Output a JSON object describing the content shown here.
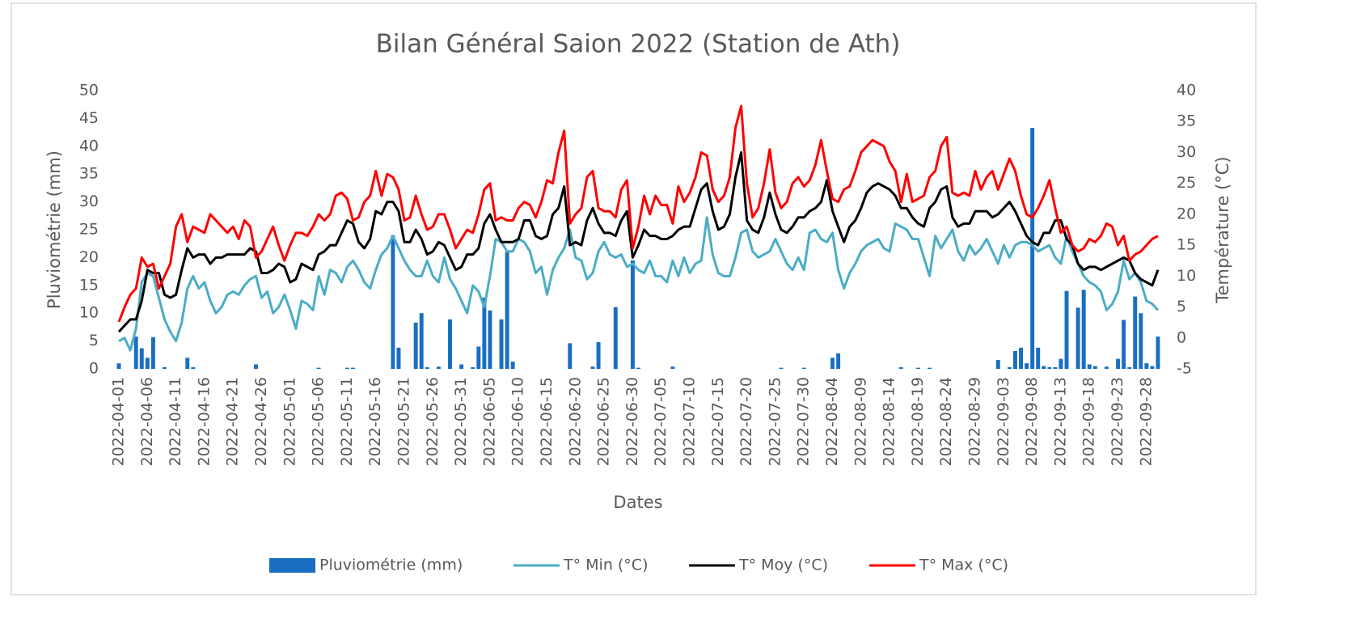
{
  "chart_data": {
    "type": "bar-line",
    "title": "Bilan Général Saion 2022 (Station de Ath)",
    "x_label": "Dates",
    "y_label": "Pluviométrie (mm)",
    "y2_label": "Température (°C)",
    "ylim": [
      0,
      50
    ],
    "yticks": [
      0,
      5,
      10,
      15,
      20,
      25,
      30,
      35,
      40,
      45,
      50
    ],
    "y2lim": [
      -5,
      40
    ],
    "y2ticks": [
      -5,
      0,
      5,
      10,
      15,
      20,
      25,
      30,
      35,
      40
    ],
    "legend": "bottom",
    "categories": [
      "2022-04-01",
      null,
      null,
      null,
      null,
      "2022-04-06",
      null,
      null,
      null,
      null,
      "2022-04-11",
      null,
      null,
      null,
      null,
      "2022-04-16",
      null,
      null,
      null,
      null,
      "2022-04-21",
      null,
      null,
      null,
      null,
      "2022-04-26",
      null,
      null,
      null,
      null,
      "2022-05-01",
      null,
      null,
      null,
      null,
      "2022-05-06",
      null,
      null,
      null,
      null,
      "2022-05-11",
      null,
      null,
      null,
      null,
      "2022-05-16",
      null,
      null,
      null,
      null,
      "2022-05-21",
      null,
      null,
      null,
      null,
      "2022-05-26",
      null,
      null,
      null,
      null,
      "2022-05-31",
      null,
      null,
      null,
      null,
      "2022-06-05",
      null,
      null,
      null,
      null,
      "2022-06-10",
      null,
      null,
      null,
      null,
      "2022-06-15",
      null,
      null,
      null,
      null,
      "2022-06-20",
      null,
      null,
      null,
      null,
      "2022-06-25",
      null,
      null,
      null,
      null,
      "2022-06-30",
      null,
      null,
      null,
      null,
      "2022-07-05",
      null,
      null,
      null,
      null,
      "2022-07-10",
      null,
      null,
      null,
      null,
      "2022-07-15",
      null,
      null,
      null,
      null,
      "2022-07-20",
      null,
      null,
      null,
      null,
      "2022-07-25",
      null,
      null,
      null,
      null,
      "2022-07-30",
      null,
      null,
      null,
      null,
      "2022-08-04",
      null,
      null,
      null,
      null,
      "2022-08-09",
      null,
      null,
      null,
      null,
      "2022-08-14",
      null,
      null,
      null,
      null,
      "2022-08-19",
      null,
      null,
      null,
      null,
      "2022-08-24",
      null,
      null,
      null,
      null,
      "2022-08-29",
      null,
      null,
      null,
      null,
      "2022-09-03",
      null,
      null,
      null,
      null,
      "2022-09-08",
      null,
      null,
      null,
      null,
      "2022-09-13",
      null,
      null,
      null,
      null,
      "2022-09-18",
      null,
      null,
      null,
      null,
      "2022-09-23",
      null,
      null,
      null,
      null,
      "2022-09-28",
      null,
      null
    ],
    "series": [
      {
        "name": "Pluviométrie (mm)",
        "type": "bar",
        "color": "#1a6ec2",
        "values": [
          1,
          0,
          0,
          5.8,
          3.7,
          2,
          5.7,
          0,
          0.3,
          0,
          0,
          0,
          2,
          0.3,
          0,
          0,
          0,
          0,
          0,
          0,
          0,
          0,
          0,
          0,
          0.8,
          0,
          0,
          0,
          0,
          0,
          0,
          0,
          0,
          0,
          0,
          0.2,
          0,
          0,
          0,
          0,
          0.2,
          0.2,
          0,
          0,
          0,
          0,
          0,
          0,
          24,
          3.8,
          0,
          0,
          8.3,
          10,
          0.3,
          0,
          0.4,
          0,
          8.9,
          0,
          0.8,
          0,
          0.3,
          4,
          12.8,
          10.5,
          0,
          8.9,
          21,
          1.3,
          0,
          0,
          0,
          0,
          0,
          0,
          0,
          0,
          0,
          4.6,
          0,
          0,
          0,
          0.4,
          4.8,
          0,
          0,
          11.1,
          0,
          0,
          19.5,
          0.2,
          0,
          0,
          0,
          0,
          0,
          0.4,
          0,
          0,
          0,
          0,
          0,
          0,
          0,
          0,
          0,
          0,
          0,
          0,
          0,
          0,
          0,
          0,
          0,
          0,
          0.2,
          0,
          0,
          0,
          0.2,
          0,
          0,
          0,
          0,
          2,
          2.8,
          0,
          0,
          0,
          0,
          0,
          0,
          0,
          0,
          0,
          0,
          0.3,
          0,
          0,
          0.2,
          0,
          0.2,
          0,
          0,
          0,
          0,
          0,
          0,
          0,
          0,
          0,
          0,
          0,
          1.6,
          0,
          0.3,
          3.2,
          3.8,
          1,
          43.3,
          3.8,
          0.5,
          0.3,
          0.3,
          1.8,
          14,
          0,
          11,
          14.2,
          0.8,
          0.5,
          0,
          0.4,
          0,
          1.8,
          8.8,
          0.3,
          13,
          10,
          1,
          0.5,
          5.8
        ]
      },
      {
        "name": "T° Min (°C)",
        "type": "line",
        "axis": "y2",
        "color": "#4bacc6",
        "values": [
          -0.5,
          0,
          -2,
          1.5,
          9,
          10.5,
          10,
          6.5,
          3,
          1,
          -0.5,
          2.5,
          8,
          10,
          8,
          9,
          6,
          4,
          5,
          7,
          7.5,
          7,
          8.5,
          9.5,
          10,
          6.5,
          7.5,
          4,
          5,
          7,
          4.5,
          1.5,
          6,
          5.5,
          4.5,
          10,
          7,
          11,
          10.5,
          9,
          11.5,
          12.5,
          11,
          9,
          8,
          11,
          13.5,
          14.5,
          16.5,
          14.5,
          12.5,
          11,
          10,
          10,
          12.5,
          10,
          9,
          13,
          9.5,
          8,
          6,
          4,
          8.5,
          7.5,
          5,
          10,
          16,
          15.5,
          14,
          14,
          16,
          15.5,
          14,
          10.5,
          11.5,
          7,
          11,
          13,
          14.5,
          17.5,
          13,
          12.5,
          9.5,
          10.5,
          14,
          15.5,
          13.5,
          13,
          13.5,
          11.5,
          12,
          11,
          10.5,
          12.5,
          10,
          10,
          9,
          12.5,
          10,
          13,
          10.5,
          12,
          12.5,
          19.5,
          13.5,
          10.5,
          10,
          10,
          13,
          17,
          17.5,
          14,
          13,
          13.5,
          14,
          16,
          14,
          12,
          11,
          13,
          11,
          17,
          17.5,
          16,
          15.5,
          17,
          11,
          8,
          10.5,
          12,
          14,
          15,
          15.5,
          16,
          14.5,
          14,
          18.5,
          18,
          17.5,
          16,
          16,
          13,
          10,
          16.5,
          14.5,
          16,
          17.5,
          14,
          12.5,
          15,
          13.5,
          14.5,
          16,
          14,
          12,
          15,
          13,
          15,
          15.5,
          15.5,
          15,
          14,
          14.5,
          15,
          13,
          12,
          16.5,
          14,
          12,
          10,
          9,
          8.5,
          7.5,
          4.5,
          5.5,
          7.5,
          12.5,
          9.5,
          10.5,
          9,
          6,
          5.5,
          4.5
        ]
      },
      {
        "name": "T° Moy (°C)",
        "type": "line",
        "axis": "y2",
        "color": "#000000",
        "values": [
          1,
          2,
          3,
          3,
          6,
          11,
          10.5,
          10.5,
          7,
          6.5,
          7,
          11,
          14.5,
          13,
          13.5,
          13.5,
          12,
          13,
          13,
          13.5,
          13.5,
          13.5,
          13.5,
          14.5,
          14,
          10.5,
          10.5,
          11,
          12,
          11.5,
          9,
          9.5,
          12,
          11.5,
          11,
          13.5,
          14,
          15,
          15,
          17,
          19,
          18.5,
          15.5,
          14.5,
          16,
          20.5,
          20,
          22,
          22,
          20.5,
          15.5,
          15.5,
          17.5,
          16,
          13.5,
          14,
          15.5,
          15,
          13,
          11,
          11.5,
          13.5,
          13.5,
          14.5,
          18.5,
          20,
          17.5,
          15.5,
          15.5,
          15.5,
          16,
          19,
          19,
          16.5,
          16,
          16.5,
          20,
          21,
          24.5,
          15,
          15.5,
          15,
          19,
          21,
          18.5,
          17,
          17,
          16.5,
          19,
          20.5,
          13,
          15,
          17.5,
          16.5,
          16.5,
          16,
          16,
          16.5,
          17.5,
          18,
          18,
          21,
          24,
          25,
          20.5,
          17.5,
          18,
          20,
          26,
          30,
          19,
          17.5,
          17,
          19.5,
          23.5,
          20,
          17.5,
          17,
          18,
          19.5,
          19.5,
          20.5,
          21,
          22,
          25.5,
          20.5,
          18,
          15.5,
          18,
          19,
          21,
          23.5,
          24.5,
          25,
          24.5,
          24,
          23,
          21,
          21,
          19.5,
          18.5,
          18,
          21,
          22,
          24,
          24.5,
          19.5,
          18,
          18.5,
          18.5,
          20.5,
          20.5,
          20.5,
          19.5,
          20,
          21,
          22,
          20.5,
          18.5,
          16.5,
          15.5,
          15,
          17,
          17,
          19,
          19,
          16,
          15,
          12,
          11,
          11.5,
          11.5,
          11,
          11.5,
          12,
          12.5,
          13,
          12.5,
          10.5,
          9.5,
          9,
          8.5,
          11
        ]
      },
      {
        "name": "T° Max (°C)",
        "type": "line",
        "axis": "y2",
        "color": "#ff0000",
        "values": [
          2.6,
          5,
          7,
          8,
          13,
          11.5,
          12,
          8,
          10,
          12,
          18,
          20,
          15.5,
          18,
          17.5,
          17,
          20,
          19,
          18,
          17,
          18,
          16,
          19,
          18,
          13,
          14,
          16,
          18,
          15,
          12.5,
          15,
          17,
          17,
          16.5,
          18,
          20,
          19,
          20,
          23,
          23.5,
          22.5,
          19,
          19.5,
          22,
          23,
          27,
          23,
          26.5,
          26,
          24,
          19,
          19.5,
          23,
          20,
          17.5,
          18,
          20,
          20,
          17.5,
          14.5,
          16,
          17.5,
          17,
          20,
          24,
          25,
          19,
          19.5,
          19,
          19,
          21,
          22,
          21.5,
          19.5,
          22,
          25.5,
          25,
          30,
          33.5,
          18.5,
          20,
          21,
          26,
          27,
          21,
          20.5,
          20.5,
          19.5,
          24,
          25.5,
          14.5,
          18,
          23,
          20,
          23,
          21.5,
          21.5,
          18.5,
          24.5,
          22,
          23.5,
          26,
          30,
          29.5,
          24,
          22,
          23,
          26,
          34,
          37.5,
          25,
          19.5,
          21,
          25,
          30.5,
          23.5,
          21,
          22,
          25,
          26,
          24.5,
          25.5,
          28,
          32,
          27,
          22.5,
          22,
          24,
          24.5,
          27,
          30,
          31,
          32,
          31.5,
          31,
          28.5,
          27,
          22,
          26.5,
          22,
          22.5,
          23,
          26,
          27,
          31,
          32.5,
          23.5,
          23,
          23.5,
          23,
          27,
          24,
          26,
          27,
          24,
          26.5,
          29,
          27,
          23,
          20,
          19.5,
          21,
          23,
          25.5,
          21,
          17,
          18,
          15,
          14,
          14.5,
          16,
          15.5,
          16.5,
          18.5,
          18,
          15,
          16.5,
          12.5,
          13.5,
          14,
          15,
          16,
          16.5
        ]
      }
    ]
  }
}
